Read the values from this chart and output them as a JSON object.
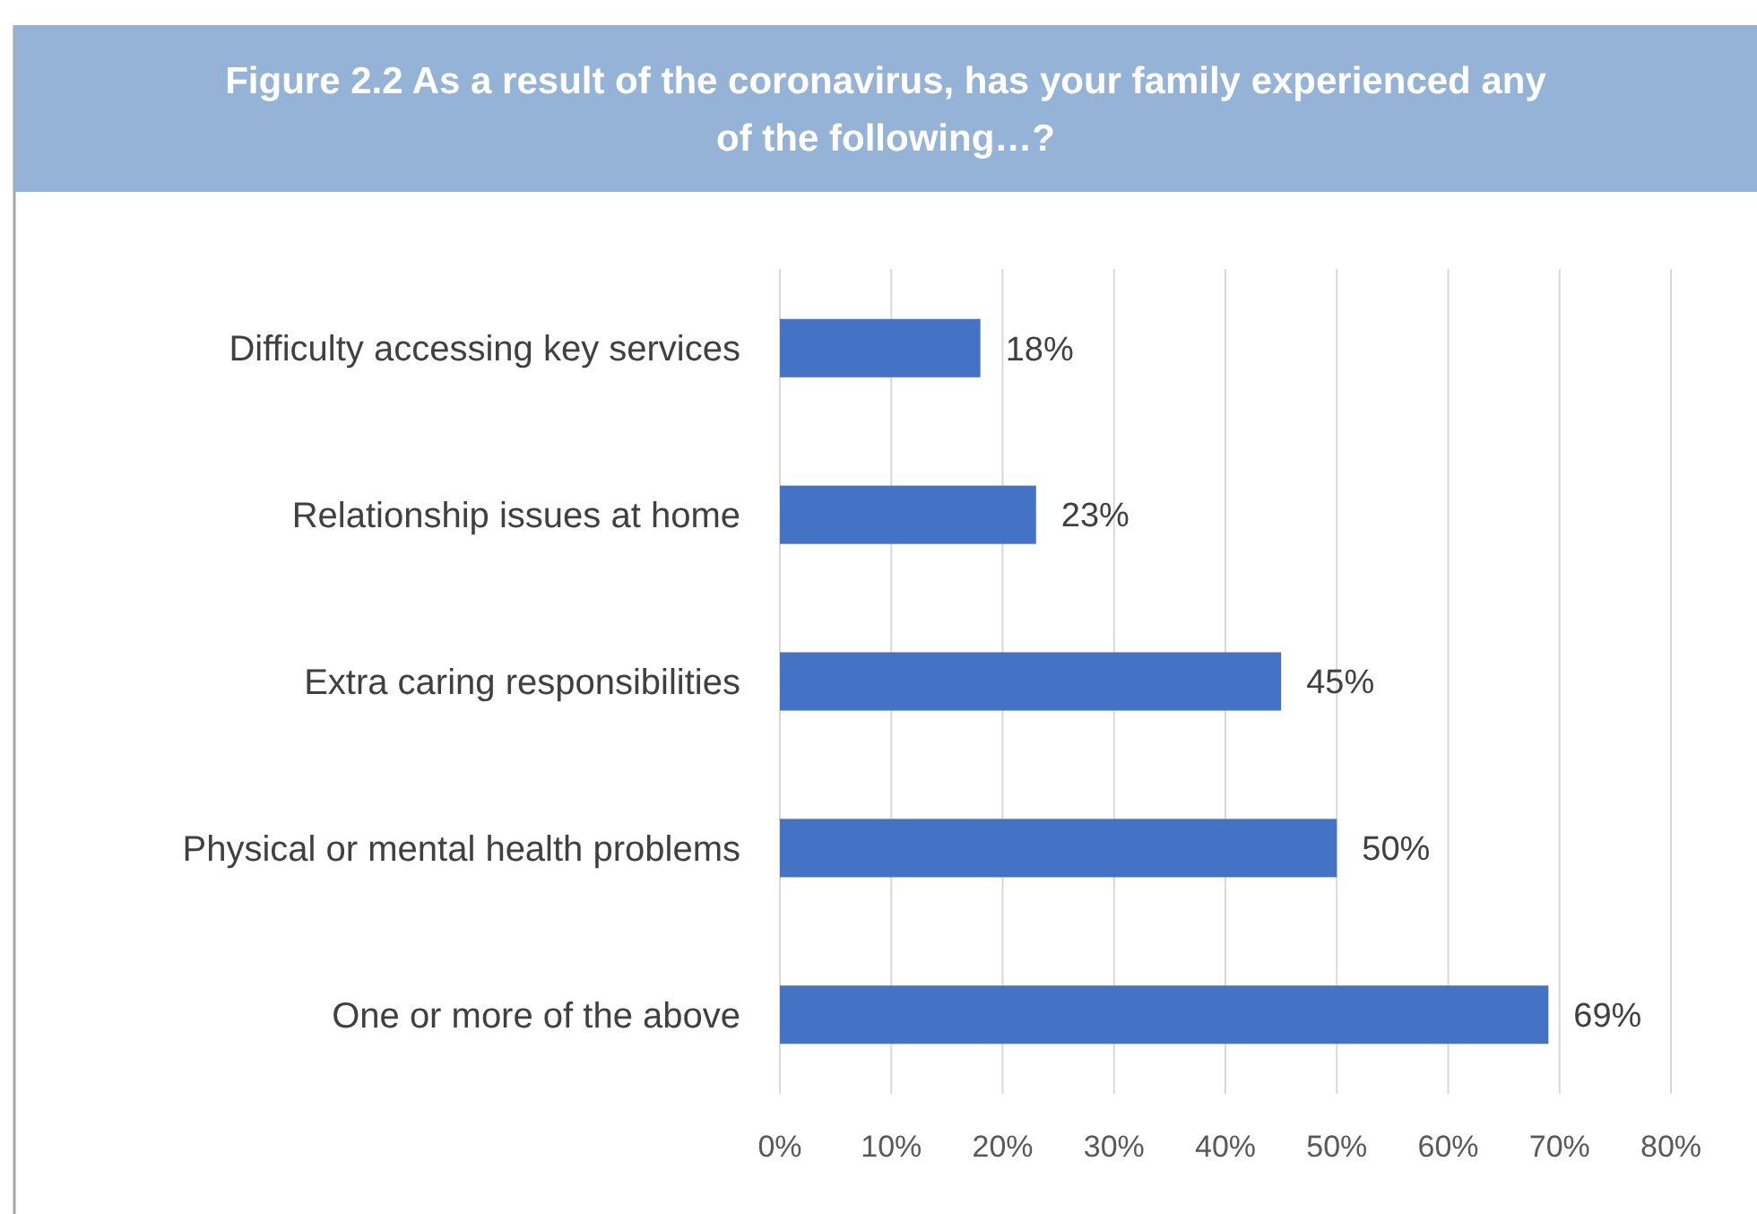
{
  "chart_data": {
    "type": "bar",
    "orientation": "horizontal",
    "title": "Figure 2.2 As a result of the coronavirus, has your family experienced any of the following…?",
    "categories": [
      "Difficulty accessing key services",
      "Relationship issues at home",
      "Extra caring responsibilities",
      "Physical or mental health problems",
      "One or more of the above"
    ],
    "values": [
      18,
      23,
      45,
      50,
      69
    ],
    "color": "#4472c4",
    "value_labels": [
      "18%",
      "23%",
      "45%",
      "50%",
      "69%"
    ],
    "xlim": [
      0,
      80
    ],
    "xticks": [
      {
        "value": 0,
        "label": "0%"
      },
      {
        "value": 10,
        "label": "10%"
      },
      {
        "value": 20,
        "label": "20%"
      },
      {
        "value": 30,
        "label": "30%"
      },
      {
        "value": 40,
        "label": "40%"
      },
      {
        "value": 50,
        "label": "50%"
      },
      {
        "value": 60,
        "label": "60%"
      },
      {
        "value": 70,
        "label": "70%"
      },
      {
        "value": 80,
        "label": "80%"
      }
    ],
    "grid": "x"
  }
}
